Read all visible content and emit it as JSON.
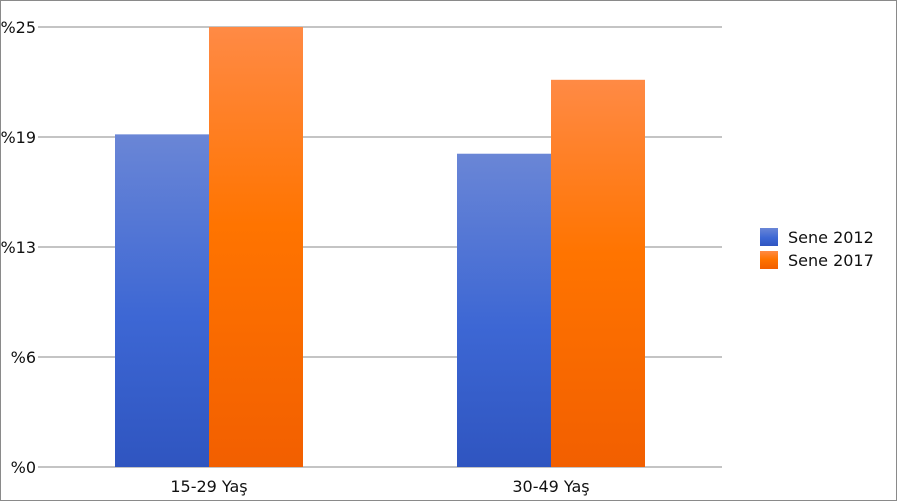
{
  "chart_data": {
    "type": "bar",
    "categories": [
      "15-29 Yaş",
      "30-49 Yaş"
    ],
    "series": [
      {
        "name": "Sene 2012",
        "values": [
          18.9,
          17.8
        ],
        "color": "#3f66d4"
      },
      {
        "name": "Sene 2017",
        "values": [
          25.0,
          22.0
        ],
        "color": "#ff6f00"
      }
    ],
    "y_ticks": [
      "%0",
      "%6",
      "%13",
      "%19",
      "%25"
    ],
    "ylim": [
      0,
      25
    ],
    "grid": true,
    "legend_position": "right"
  }
}
